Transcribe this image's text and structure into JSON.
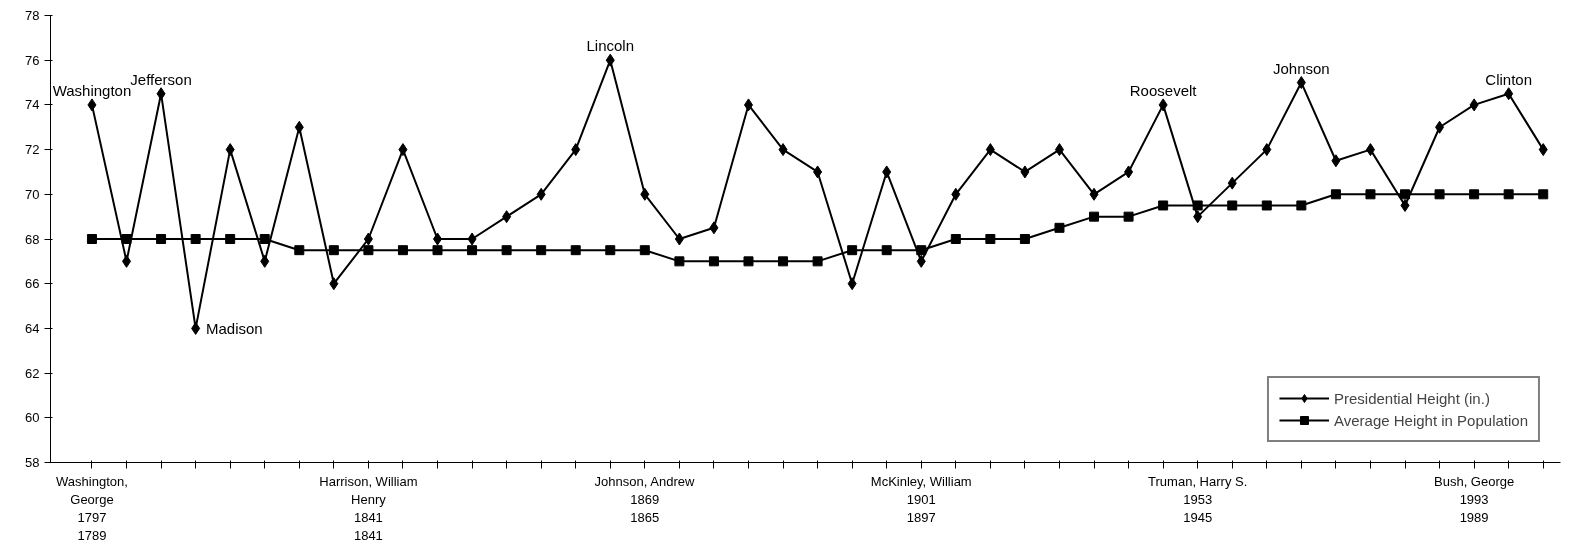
{
  "chart_data": {
    "type": "line",
    "categories": [
      "Washington,\nGeorge\n1797\n1789",
      null,
      null,
      null,
      null,
      null,
      null,
      null,
      "Harrison, William\nHenry\n1841\n1841",
      null,
      null,
      null,
      null,
      null,
      null,
      null,
      "Johnson, Andrew\n1869\n1865",
      null,
      null,
      null,
      null,
      null,
      null,
      null,
      "McKinley, William\n1901\n1897",
      null,
      null,
      null,
      null,
      null,
      null,
      null,
      "Truman, Harry S.\n1953\n1945",
      null,
      null,
      null,
      null,
      null,
      null,
      null,
      "Bush, George\n1993\n1989",
      null,
      null
    ],
    "series": [
      {
        "name": "Presidential Height (in.)",
        "color": "#000000",
        "marker": "diamond",
        "values": [
          74,
          67,
          74.5,
          64,
          72,
          67,
          73,
          66,
          68,
          72,
          68,
          68,
          69,
          70,
          72,
          76,
          70,
          68,
          68.5,
          74,
          72,
          71,
          66,
          71,
          67,
          70,
          72,
          71,
          72,
          70,
          71,
          74,
          69,
          70.5,
          72,
          75,
          71.5,
          72,
          69.5,
          73,
          74,
          74.5,
          72
        ],
        "value_labels": [
          "Washington",
          null,
          "Jefferson",
          "Madison",
          null,
          null,
          null,
          null,
          null,
          null,
          null,
          null,
          null,
          null,
          null,
          "Lincoln",
          null,
          null,
          null,
          null,
          null,
          null,
          null,
          null,
          null,
          null,
          null,
          null,
          null,
          null,
          null,
          "Roosevelt",
          null,
          null,
          null,
          "Johnson",
          null,
          null,
          null,
          null,
          null,
          "Clinton",
          null
        ]
      },
      {
        "name": "Average Height in Population",
        "color": "#000000",
        "marker": "square",
        "values": [
          68,
          68,
          68,
          68,
          68,
          68,
          67.5,
          67.5,
          67.5,
          67.5,
          67.5,
          67.5,
          67.5,
          67.5,
          67.5,
          67.5,
          67.5,
          67,
          67,
          67,
          67,
          67,
          67.5,
          67.5,
          67.5,
          68,
          68,
          68,
          68.5,
          69,
          69,
          69.5,
          69.5,
          69.5,
          69.5,
          69.5,
          70,
          70,
          70,
          70,
          70,
          70,
          70
        ]
      }
    ],
    "ylim": [
      58,
      78
    ],
    "yticks": [
      58,
      60,
      62,
      64,
      66,
      68,
      70,
      72,
      74,
      76,
      78
    ],
    "grid": false,
    "legend": "bottom right"
  }
}
